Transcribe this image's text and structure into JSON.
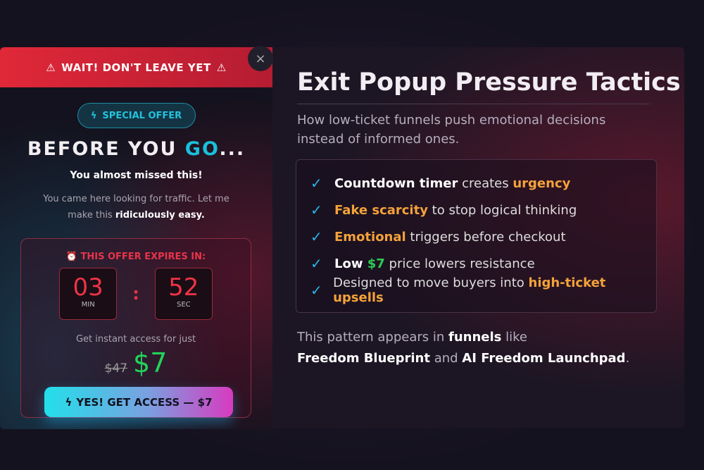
{
  "popup": {
    "banner": "WAIT! DON'T LEAVE YET",
    "close_icon": "×",
    "badge": "SPECIAL OFFER",
    "heading_a": "BEFORE YOU ",
    "heading_b": "GO",
    "heading_c": "...",
    "subheading": "You almost missed this!",
    "desc_a": "You came here looking for traffic. Let me make this ",
    "desc_b": "ridiculously easy.",
    "expires": "THIS OFFER EXPIRES IN:",
    "minutes": "03",
    "min_label": "MIN",
    "seconds": "52",
    "sec_label": "SEC",
    "access_text": "Get instant access for just",
    "old_price": "$47",
    "new_price": "$7",
    "cta": "YES! GET ACCESS — $7"
  },
  "panel": {
    "title": "Exit Popup Pressure Tactics",
    "lead": "How low-ticket funnels push emotional decisions instead of informed ones.",
    "items": [
      {
        "a": "Countdown timer",
        "b": " creates ",
        "c": "urgency"
      },
      {
        "a": "Fake scarcity",
        "b": " to stop logical thinking"
      },
      {
        "a": "Emotional",
        "b": " triggers before checkout"
      },
      {
        "a": "Low ",
        "g": "$7",
        "b": " price lowers resistance"
      },
      {
        "b": "Designed to move buyers into ",
        "c": "high-ticket upsells"
      }
    ],
    "foot_a": "This pattern appears in ",
    "foot_b": "funnels",
    "foot_c": " like",
    "foot_d": "Freedom Blueprint",
    "foot_e": " and ",
    "foot_f": "AI Freedom Launchpad",
    "foot_g": "."
  }
}
